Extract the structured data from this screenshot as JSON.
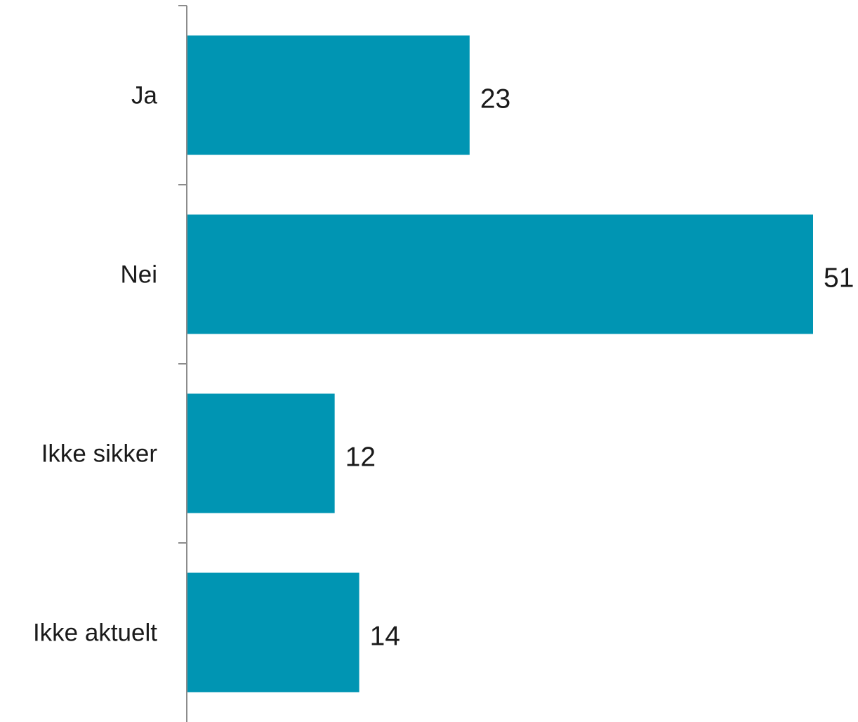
{
  "chart_data": {
    "type": "bar",
    "orientation": "horizontal",
    "categories": [
      "Ja",
      "Nei",
      "Ikke sikker",
      "Ikke aktuelt"
    ],
    "values": [
      23,
      51,
      12,
      14
    ],
    "title": "",
    "xlabel": "",
    "ylabel": "",
    "xlim": [
      0,
      51
    ],
    "grid": false,
    "legend": "none",
    "data_labels": true,
    "bar_color": "#0095b3",
    "axis_color": "#8c8c8c"
  }
}
